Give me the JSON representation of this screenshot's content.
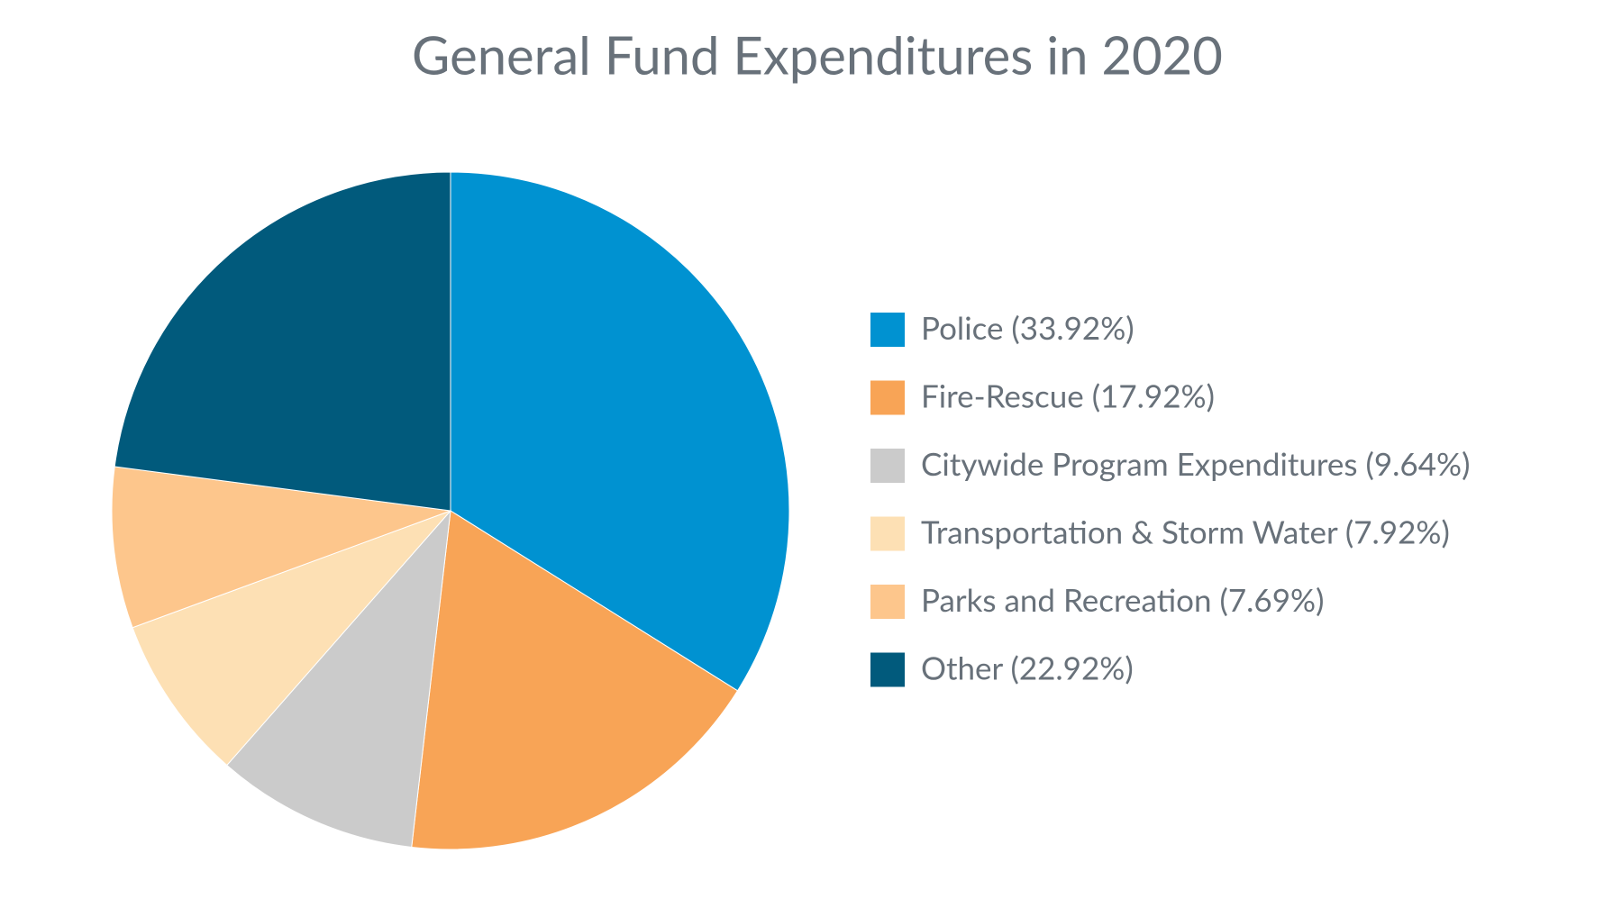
{
  "chart_data": {
    "type": "pie",
    "title": "General Fund Expenditures in 2020",
    "categories": [
      "Police (33.92%)",
      "Fire-Rescue (17.92%)",
      "Citywide Program Expenditures (9.64%)",
      "Transportation & Storm Water (7.92%)",
      "Parks and Recreation (7.69%)",
      "Other (22.92%)"
    ],
    "values": [
      33.92,
      17.92,
      9.64,
      7.92,
      7.69,
      22.92
    ],
    "colors": [
      "#0092d1",
      "#f8a456",
      "#cbcbcb",
      "#fde0b4",
      "#fdc68c",
      "#015a7c"
    ],
    "legend": "right"
  }
}
